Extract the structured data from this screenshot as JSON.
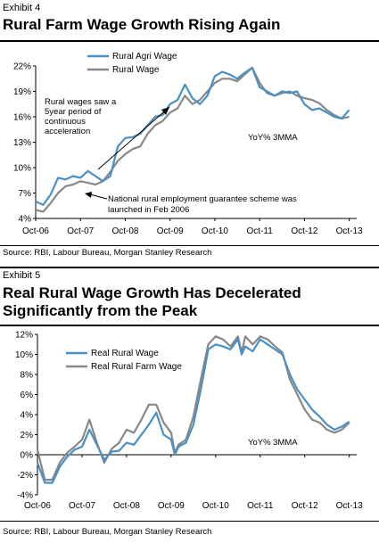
{
  "exhibit4": {
    "label": "Exhibit 4",
    "title": "Rural Farm Wage Growth Rising Again",
    "source": "Source: RBI, Labour Bureau, Morgan Stanley Research"
  },
  "exhibit5": {
    "label": "Exhibit 5",
    "title": "Real Rural Wage Growth Has Decelerated Significantly from the Peak",
    "source": "Source: RBI, Labour Bureau, Morgan Stanley Research"
  },
  "colors": {
    "series_primary": "#4a90c4",
    "series_secondary": "#888888"
  },
  "chart_data": [
    {
      "type": "line",
      "title": "Rural Farm Wage Growth Rising Again",
      "xlabel": "",
      "ylabel": "",
      "ylim": [
        4,
        22
      ],
      "yticks": [
        "4%",
        "7%",
        "10%",
        "13%",
        "16%",
        "19%",
        "22%"
      ],
      "ytick_values": [
        4,
        7,
        10,
        13,
        16,
        19,
        22
      ],
      "xticks": [
        "Oct-06",
        "Oct-07",
        "Oct-08",
        "Oct-09",
        "Oct-10",
        "Oct-11",
        "Oct-12",
        "Oct-13"
      ],
      "xtick_month_index": [
        0,
        12,
        24,
        36,
        48,
        60,
        72,
        84
      ],
      "month_count": 86,
      "grid": false,
      "legend_position": "top-center",
      "annotations": [
        "Rural wages saw a 5year period of continuous acceleration",
        "National rural employment guarantee scheme was launched in Feb 2006",
        "YoY% 3MMA"
      ],
      "series": [
        {
          "name": "Rural Agri Wage",
          "color": "#4a90c4",
          "points": [
            [
              0,
              6.0
            ],
            [
              2,
              5.6
            ],
            [
              4,
              6.8
            ],
            [
              6,
              8.8
            ],
            [
              8,
              8.6
            ],
            [
              10,
              9.0
            ],
            [
              12,
              8.8
            ],
            [
              14,
              9.6
            ],
            [
              16,
              9.0
            ],
            [
              18,
              8.4
            ],
            [
              20,
              9.0
            ],
            [
              22,
              12.5
            ],
            [
              24,
              13.5
            ],
            [
              26,
              13.6
            ],
            [
              28,
              14.0
            ],
            [
              30,
              15.0
            ],
            [
              32,
              16.0
            ],
            [
              34,
              16.2
            ],
            [
              36,
              17.5
            ],
            [
              38,
              18.0
            ],
            [
              40,
              19.8
            ],
            [
              42,
              18.2
            ],
            [
              44,
              17.5
            ],
            [
              46,
              18.5
            ],
            [
              48,
              20.8
            ],
            [
              50,
              21.3
            ],
            [
              52,
              21.0
            ],
            [
              54,
              20.5
            ],
            [
              56,
              21.2
            ],
            [
              58,
              21.8
            ],
            [
              60,
              19.5
            ],
            [
              62,
              19.0
            ],
            [
              64,
              18.5
            ],
            [
              66,
              19.0
            ],
            [
              68,
              18.8
            ],
            [
              70,
              19.0
            ],
            [
              72,
              17.5
            ],
            [
              74,
              16.8
            ],
            [
              76,
              17.0
            ],
            [
              78,
              16.5
            ],
            [
              80,
              16.0
            ],
            [
              82,
              15.8
            ],
            [
              84,
              16.8
            ]
          ]
        },
        {
          "name": "Rural Wage",
          "color": "#888888",
          "points": [
            [
              0,
              5.0
            ],
            [
              2,
              4.8
            ],
            [
              4,
              5.8
            ],
            [
              6,
              7.0
            ],
            [
              8,
              7.8
            ],
            [
              10,
              8.0
            ],
            [
              12,
              8.4
            ],
            [
              14,
              8.2
            ],
            [
              16,
              8.0
            ],
            [
              18,
              8.4
            ],
            [
              20,
              9.5
            ],
            [
              22,
              10.8
            ],
            [
              24,
              11.6
            ],
            [
              26,
              12.2
            ],
            [
              28,
              12.5
            ],
            [
              30,
              14.0
            ],
            [
              32,
              15.0
            ],
            [
              34,
              15.5
            ],
            [
              36,
              16.5
            ],
            [
              38,
              17.0
            ],
            [
              40,
              18.5
            ],
            [
              42,
              17.5
            ],
            [
              44,
              18.0
            ],
            [
              46,
              19.0
            ],
            [
              48,
              20.0
            ],
            [
              50,
              20.5
            ],
            [
              52,
              20.5
            ],
            [
              54,
              20.2
            ],
            [
              56,
              21.0
            ],
            [
              58,
              21.8
            ],
            [
              60,
              20.0
            ],
            [
              62,
              18.8
            ],
            [
              64,
              18.5
            ],
            [
              66,
              18.8
            ],
            [
              68,
              19.0
            ],
            [
              70,
              18.5
            ],
            [
              72,
              18.2
            ],
            [
              74,
              18.0
            ],
            [
              76,
              17.6
            ],
            [
              78,
              16.8
            ],
            [
              80,
              16.2
            ],
            [
              82,
              15.8
            ],
            [
              84,
              16.0
            ]
          ]
        }
      ]
    },
    {
      "type": "line",
      "title": "Real Rural Wage Growth Has Decelerated Significantly from the Peak",
      "xlabel": "",
      "ylabel": "",
      "ylim": [
        -4,
        12
      ],
      "yticks": [
        "-4%",
        "-2%",
        "0%",
        "2%",
        "4%",
        "6%",
        "8%",
        "10%",
        "12%"
      ],
      "ytick_values": [
        -4,
        -2,
        0,
        2,
        4,
        6,
        8,
        10,
        12
      ],
      "xticks": [
        "Oct-06",
        "Oct-07",
        "Oct-08",
        "Oct-09",
        "Oct-10",
        "Oct-11",
        "Oct-12",
        "Oct-13"
      ],
      "xtick_month_index": [
        0,
        12,
        24,
        36,
        48,
        60,
        72,
        84
      ],
      "month_count": 86,
      "grid": false,
      "legend_position": "top-left",
      "annotations": [
        "YoY% 3MMA"
      ],
      "series": [
        {
          "name": "Real Rural Wage",
          "color": "#4a90c4",
          "points": [
            [
              0,
              -0.8
            ],
            [
              2,
              -2.8
            ],
            [
              4,
              -2.8
            ],
            [
              6,
              -1.2
            ],
            [
              8,
              -0.2
            ],
            [
              10,
              0.5
            ],
            [
              12,
              0.8
            ],
            [
              14,
              2.5
            ],
            [
              16,
              1.0
            ],
            [
              18,
              -0.5
            ],
            [
              20,
              0.3
            ],
            [
              22,
              0.4
            ],
            [
              24,
              1.2
            ],
            [
              26,
              1.0
            ],
            [
              28,
              2.0
            ],
            [
              30,
              3.0
            ],
            [
              32,
              4.2
            ],
            [
              34,
              2.0
            ],
            [
              36,
              1.5
            ],
            [
              37,
              0
            ],
            [
              38,
              0.8
            ],
            [
              40,
              1.2
            ],
            [
              42,
              3.0
            ],
            [
              44,
              6.5
            ],
            [
              46,
              10.5
            ],
            [
              48,
              11.0
            ],
            [
              50,
              10.8
            ],
            [
              52,
              10.5
            ],
            [
              54,
              11.5
            ],
            [
              55,
              10.0
            ],
            [
              56,
              10.8
            ],
            [
              58,
              10.3
            ],
            [
              60,
              11.5
            ],
            [
              62,
              11.0
            ],
            [
              64,
              10.5
            ],
            [
              66,
              10.0
            ],
            [
              68,
              8.0
            ],
            [
              70,
              6.5
            ],
            [
              72,
              5.5
            ],
            [
              74,
              4.5
            ],
            [
              76,
              3.8
            ],
            [
              78,
              3.0
            ],
            [
              80,
              2.5
            ],
            [
              82,
              2.8
            ],
            [
              84,
              3.3
            ]
          ]
        },
        {
          "name": "Real Rural Farm Wage",
          "color": "#888888",
          "points": [
            [
              0,
              0.5
            ],
            [
              2,
              -2.5
            ],
            [
              4,
              -2.5
            ],
            [
              6,
              -0.8
            ],
            [
              8,
              0.2
            ],
            [
              10,
              0.8
            ],
            [
              12,
              1.5
            ],
            [
              14,
              3.5
            ],
            [
              16,
              1.2
            ],
            [
              18,
              -0.8
            ],
            [
              20,
              0.6
            ],
            [
              22,
              1.2
            ],
            [
              24,
              2.5
            ],
            [
              26,
              2.2
            ],
            [
              28,
              3.5
            ],
            [
              30,
              5.0
            ],
            [
              32,
              5.0
            ],
            [
              34,
              3.2
            ],
            [
              36,
              2.2
            ],
            [
              37,
              0.2
            ],
            [
              38,
              1.0
            ],
            [
              40,
              1.5
            ],
            [
              42,
              3.8
            ],
            [
              44,
              7.5
            ],
            [
              46,
              11.0
            ],
            [
              48,
              11.8
            ],
            [
              50,
              11.5
            ],
            [
              52,
              10.8
            ],
            [
              54,
              11.8
            ],
            [
              55,
              10.2
            ],
            [
              56,
              11.8
            ],
            [
              58,
              11.0
            ],
            [
              60,
              11.8
            ],
            [
              62,
              11.5
            ],
            [
              64,
              10.8
            ],
            [
              66,
              10.2
            ],
            [
              68,
              7.5
            ],
            [
              70,
              6.0
            ],
            [
              72,
              4.5
            ],
            [
              74,
              3.5
            ],
            [
              76,
              3.2
            ],
            [
              78,
              2.5
            ],
            [
              80,
              2.2
            ],
            [
              82,
              2.5
            ],
            [
              84,
              3.2
            ]
          ]
        }
      ]
    }
  ]
}
